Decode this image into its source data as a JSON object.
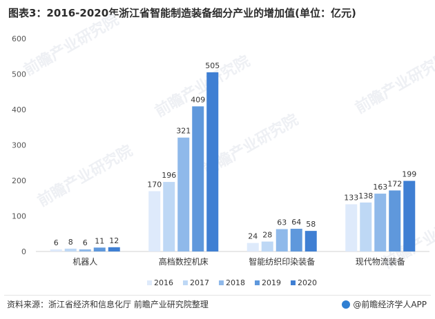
{
  "title": "图表3：2016-2020年浙江省智能制造装备细分产业的增加值(单位：亿元)",
  "source_text": "资料来源：浙江省经济和信息化厅 前瞻产业研究院整理",
  "brand_text": "@前瞻经济学人APP",
  "watermark_text": "前瞻产业研究院",
  "colors": {
    "2016": "#deeafb",
    "2017": "#bed8f5",
    "2018": "#8fb9ea",
    "2019": "#5f98dc",
    "2020": "#3f7fd3"
  },
  "chart_data": {
    "type": "bar",
    "title": "2016-2020年浙江省智能制造装备细分产业的增加值(单位：亿元)",
    "categories": [
      "机器人",
      "高档数控机床",
      "智能纺织印染装备",
      "现代物流装备"
    ],
    "series": [
      {
        "name": "2016",
        "values": [
          6,
          170,
          24,
          133
        ]
      },
      {
        "name": "2017",
        "values": [
          8,
          196,
          28,
          138
        ]
      },
      {
        "name": "2018",
        "values": [
          6,
          321,
          63,
          163
        ]
      },
      {
        "name": "2019",
        "values": [
          11,
          409,
          64,
          172
        ]
      },
      {
        "name": "2020",
        "values": [
          12,
          505,
          58,
          199
        ]
      }
    ],
    "yticks": [
      0,
      100,
      200,
      300,
      400,
      500,
      600
    ],
    "ylim": [
      0,
      600
    ],
    "xlabel": "",
    "ylabel": "",
    "grid": false,
    "legend_position": "bottom"
  }
}
